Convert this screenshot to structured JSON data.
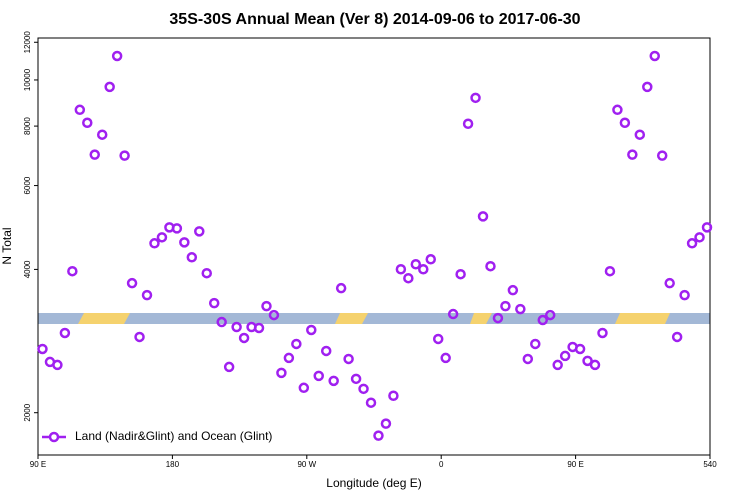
{
  "chart_data": {
    "type": "scatter",
    "title": "35S-30S Annual Mean (Ver 8)   2014-09-06 to 2017-06-30",
    "x_label": "Longitude (deg E)",
    "y_label": "N Total",
    "x": [
      93,
      98,
      103,
      108,
      113,
      118,
      123,
      128,
      133,
      138,
      143,
      148,
      153,
      158,
      163,
      168,
      173,
      178,
      183,
      188,
      193,
      198,
      203,
      208,
      213,
      218,
      223,
      228,
      233,
      238,
      243,
      248,
      253,
      258,
      263,
      268,
      273,
      278,
      283,
      288,
      293,
      298,
      303,
      308,
      313,
      318,
      323,
      328,
      333,
      338,
      343,
      348,
      353,
      358,
      363,
      368,
      373,
      378,
      383,
      388,
      393,
      398,
      403,
      408,
      413,
      418,
      423,
      428,
      433,
      438,
      443,
      448,
      453,
      458,
      463,
      468,
      473,
      478,
      483,
      488,
      493,
      498,
      503,
      508,
      513,
      518,
      523,
      528,
      533,
      538
    ],
    "series": [
      {
        "name": "Land (Nadir&Glint) and Ocean (Glint)",
        "color": "#a020f0",
        "values": [
          2722,
          2557,
          2520,
          2941,
          3965,
          8656,
          8130,
          6968,
          7673,
          9670,
          11229,
          6935,
          3742,
          2885,
          3532,
          4538,
          4671,
          4902,
          4878,
          4559,
          4241,
          4808,
          3927,
          3398,
          3101,
          2496,
          3027,
          2871,
          3027,
          3013,
          3349,
          3207,
          2425,
          2607,
          2789,
          2256,
          2984,
          2390,
          2696,
          2333,
          3653,
          2594,
          2356,
          2245,
          2099,
          1790,
          1897,
          2171,
          4003,
          3833,
          4101,
          4003,
          4201,
          2857,
          2607,
          3223,
          3908,
          8091,
          9171,
          5169,
          4062,
          3161,
          3349,
          3618,
          3301,
          2594,
          2789,
          3131,
          3207,
          2520,
          2632,
          2749,
          2722,
          2570,
          2520,
          2941,
          3965,
          8656,
          8130,
          6968,
          7673,
          9670,
          11229,
          6935,
          3742,
          2885,
          3532,
          4538,
          4671,
          4902
        ]
      }
    ],
    "xlim": [
      90,
      540
    ],
    "xticks": [
      {
        "value": 90,
        "label": "90 E"
      },
      180,
      {
        "value": 270,
        "label": "90 W"
      },
      {
        "value": 360,
        "label": "0"
      },
      {
        "value": 450,
        "label": "90 E"
      },
      540
    ],
    "ylim": [
      1630,
      12250
    ],
    "yticks": [
      2000,
      4000,
      6000,
      8000,
      10000,
      12000
    ],
    "log_y": true,
    "legend": "lower left"
  }
}
